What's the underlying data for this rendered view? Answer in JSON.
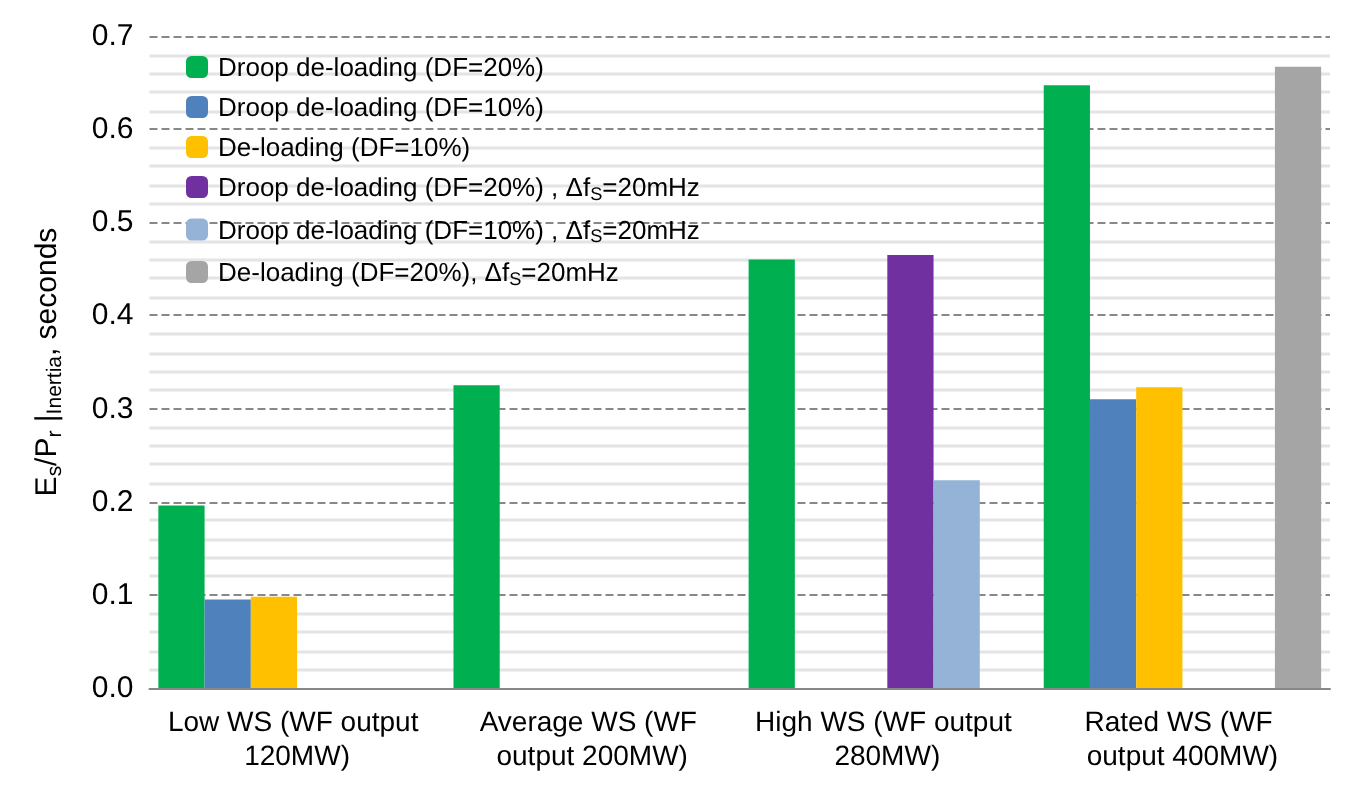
{
  "chart_data": {
    "type": "bar",
    "ylabel": "E$_{s}$/P$_{r}$ |$_{Inertia}$, seconds",
    "categories": [
      "Low WS (WF output 120MW)",
      "Average WS (WF output 200MW)",
      "High WS (WF output 280MW)",
      "Rated WS (WF output 400MW)"
    ],
    "series": [
      {
        "name": "Droop de-loading (DF=20%)",
        "color": "#00b050",
        "values": [
          0.196,
          0.325,
          0.46,
          0.647
        ]
      },
      {
        "name": "Droop de-loading (DF=10%)",
        "color": "#4f81bd",
        "values": [
          0.095,
          null,
          null,
          0.31
        ]
      },
      {
        "name": "De-loading (DF=10%)",
        "color": "#ffc000",
        "values": [
          0.098,
          null,
          null,
          0.323
        ]
      },
      {
        "name": "Droop de-loading (DF=20%) , Δf$_{S}$=20mHz",
        "color": "#7030a0",
        "values": [
          null,
          null,
          0.465,
          null
        ]
      },
      {
        "name": "Droop de-loading (DF=10%) , Δf$_{S}$=20mHz",
        "color": "#95b3d7",
        "values": [
          null,
          null,
          0.223,
          null
        ]
      },
      {
        "name": "De-loading (DF=20%), Δf$_{S}$=20mHz",
        "color": "#a5a5a5",
        "values": [
          null,
          null,
          null,
          0.667
        ]
      }
    ],
    "ylim": [
      0,
      0.7
    ],
    "yticks": [
      {
        "value": 0,
        "label": "0.0"
      },
      {
        "value": 0.1,
        "label": "0.1"
      },
      {
        "value": 0.2,
        "label": "0.2"
      },
      {
        "value": 0.3,
        "label": "0.3"
      },
      {
        "value": 0.4,
        "label": "0.4"
      },
      {
        "value": 0.5,
        "label": "0.5"
      },
      {
        "value": 0.6,
        "label": "0.6"
      },
      {
        "value": 0.7,
        "label": "0.7"
      }
    ],
    "grid": "y",
    "legend": "top left"
  }
}
